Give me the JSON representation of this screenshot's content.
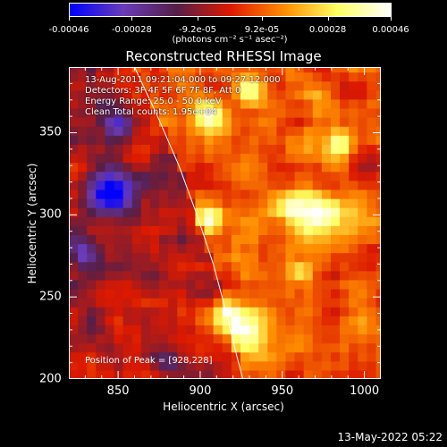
{
  "colorbar": {
    "tick_labels": [
      "-0.00046",
      "-0.00028",
      "-9.2e-05",
      "9.2e-05",
      "0.00028",
      "0.00046"
    ],
    "tick_values": [
      -0.00046,
      -0.00028,
      -9.2e-05,
      9.2e-05,
      0.00028,
      0.00046
    ],
    "range": [
      -0.00046,
      0.00046
    ],
    "units": "(photons cm⁻² s⁻¹ asec⁻²)"
  },
  "chart_data": {
    "type": "heatmap",
    "title": "Reconstructed RHESSI Image",
    "xlabel": "Heliocentric X (arcsec)",
    "ylabel": "Heliocentric Y (arcsec)",
    "xlim": [
      820,
      1010
    ],
    "ylim": [
      200,
      390
    ],
    "x_ticks": [
      850,
      900,
      950,
      1000
    ],
    "y_ticks": [
      200,
      250,
      300,
      350
    ],
    "x_tick_labels": [
      "850",
      "900",
      "950",
      "1000"
    ],
    "y_tick_labels": [
      "200",
      "250",
      "300",
      "350"
    ],
    "colormap": [
      "#0000ff",
      "#6a3cb8",
      "#551e48",
      "#dc1900",
      "#ff8c00",
      "#ffff64",
      "#ffffff"
    ],
    "peak_position": [
      928,
      228
    ],
    "limb": {
      "x": [
        860,
        874,
        887,
        898,
        908,
        916,
        922,
        926
      ],
      "y": [
        390,
        360,
        330,
        300,
        270,
        240,
        215,
        200
      ]
    },
    "bright_regions": [
      {
        "x": 928,
        "y": 228,
        "r": 14,
        "value": 0.00046
      },
      {
        "x": 915,
        "y": 238,
        "r": 10,
        "value": 0.0004
      },
      {
        "x": 905,
        "y": 298,
        "r": 8,
        "value": 0.00036
      },
      {
        "x": 955,
        "y": 305,
        "r": 10,
        "value": 0.00038
      },
      {
        "x": 975,
        "y": 300,
        "r": 12,
        "value": 0.00042
      },
      {
        "x": 905,
        "y": 360,
        "r": 10,
        "value": 0.00038
      },
      {
        "x": 930,
        "y": 375,
        "r": 9,
        "value": 0.00034
      },
      {
        "x": 985,
        "y": 345,
        "r": 8,
        "value": 0.0003
      },
      {
        "x": 960,
        "y": 265,
        "r": 7,
        "value": 0.0003
      }
    ],
    "dark_regions": [
      {
        "x": 845,
        "y": 315,
        "r": 14,
        "value": -0.00046
      },
      {
        "x": 850,
        "y": 355,
        "r": 8,
        "value": -0.00035
      },
      {
        "x": 830,
        "y": 275,
        "r": 9,
        "value": -0.0003
      },
      {
        "x": 880,
        "y": 210,
        "r": 8,
        "value": -0.00025
      }
    ]
  },
  "annotations": {
    "time_range": "13-Aug-2011 09:21:04.000 to 09:27:12.000",
    "detectors": "Detectors: 3F 4F 5F 6F 7F 8F, Att 0",
    "energy": "Energy Range: 25.0 - 50.0 keV",
    "method": "Clean    Total counts: 1.95e+04",
    "peak": "Position of Peak = [928,228]"
  },
  "footer": {
    "date": "13-May-2022 05:22"
  }
}
